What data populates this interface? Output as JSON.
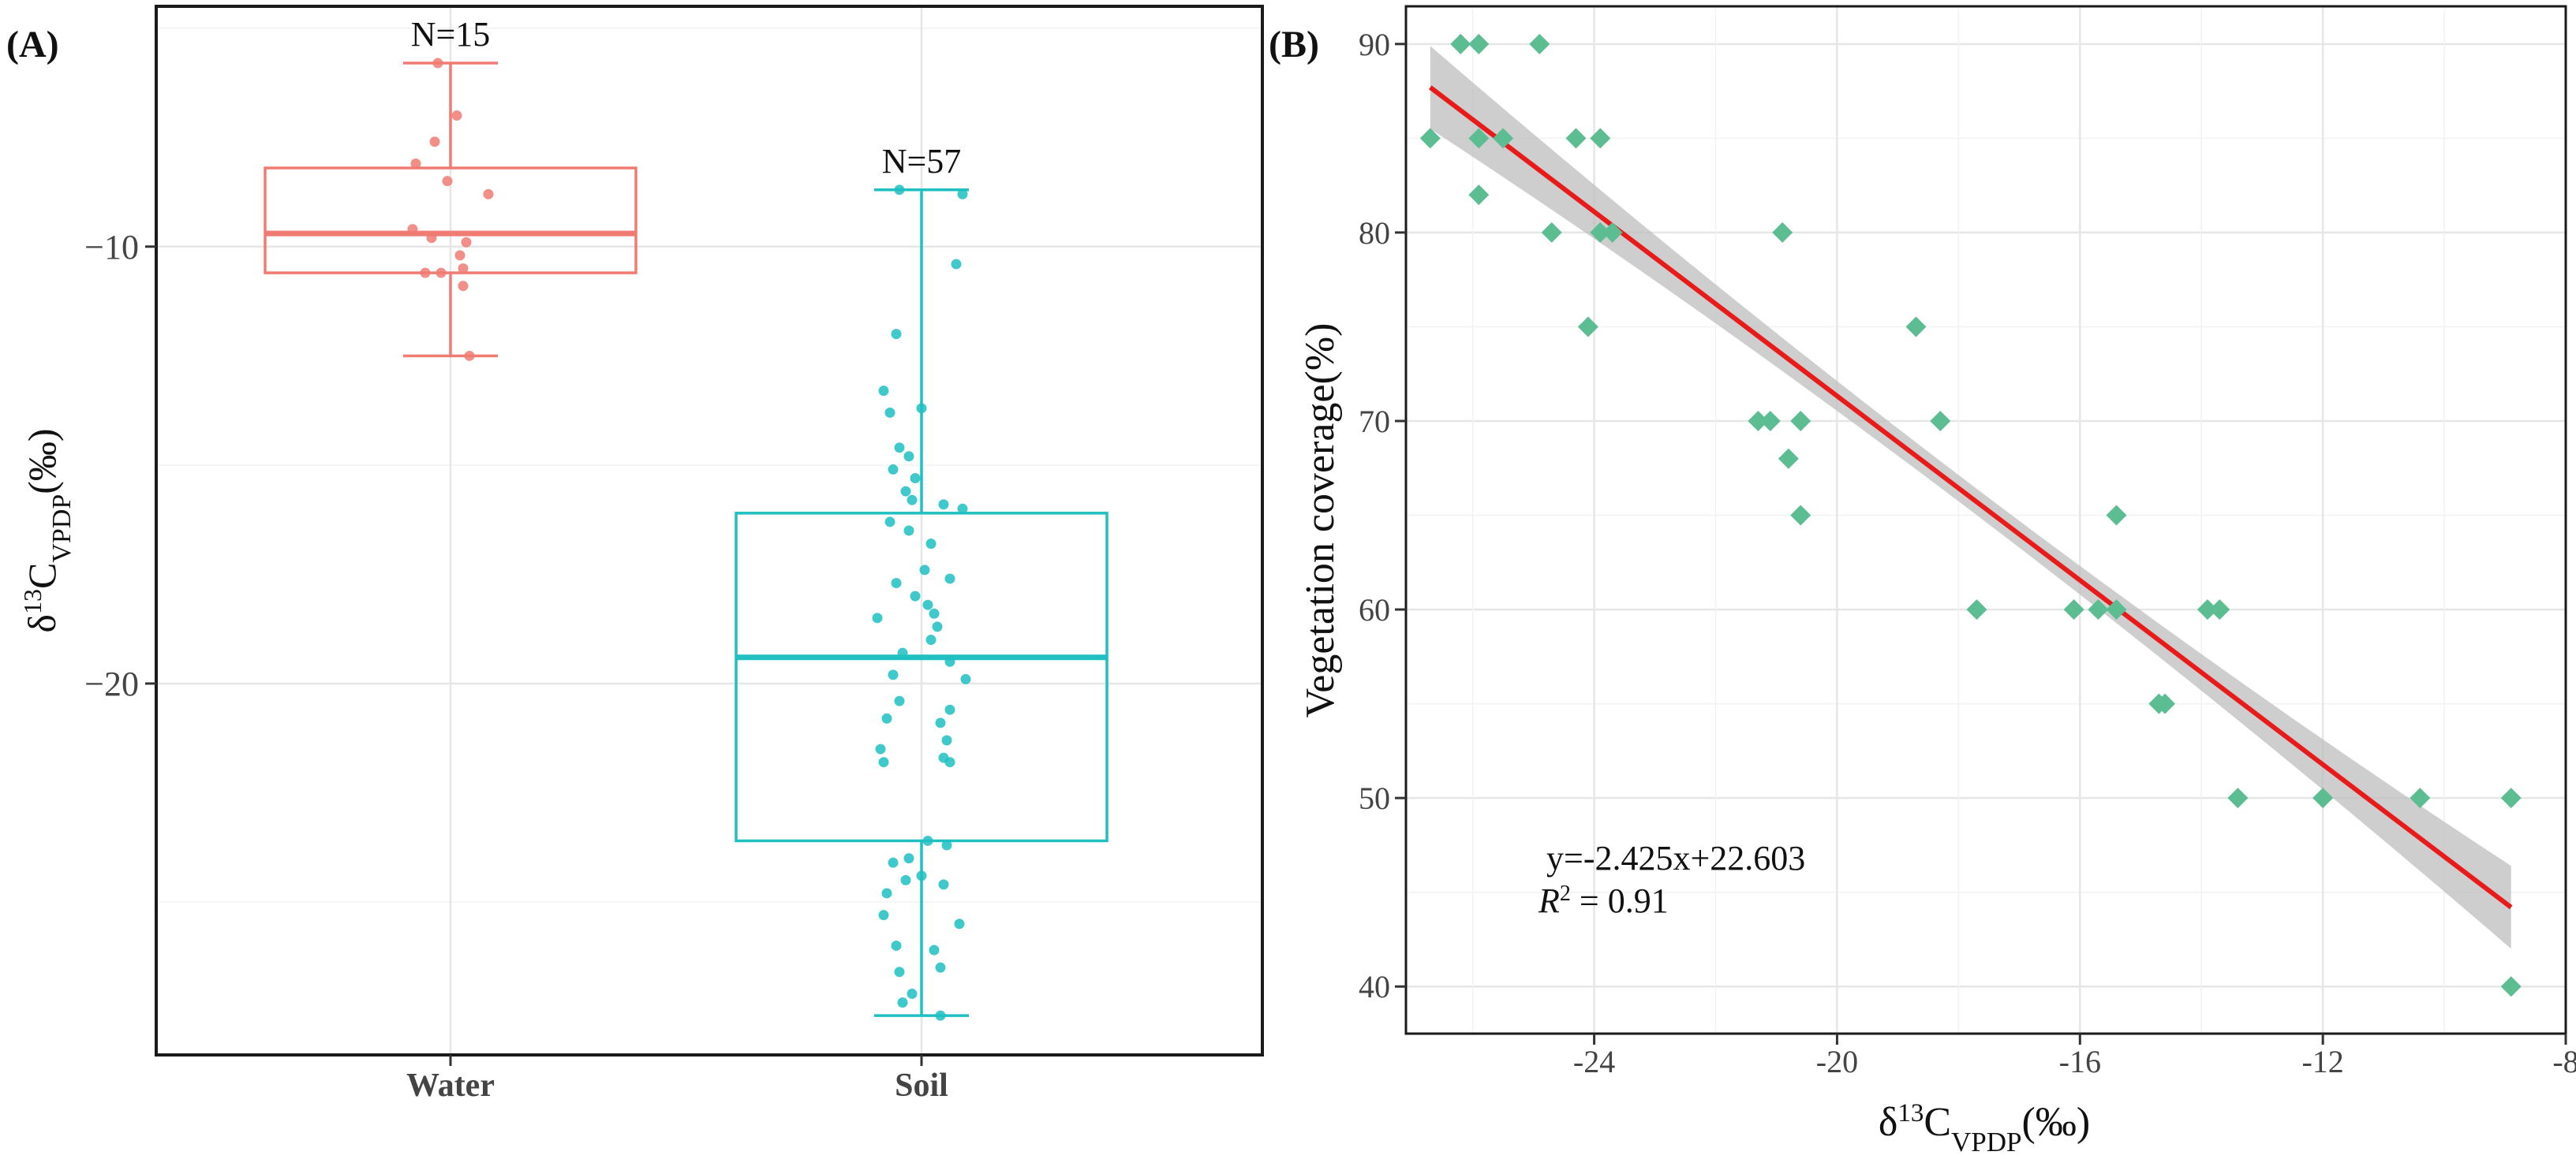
{
  "chart_data": [
    {
      "panel_label": "(A)",
      "type": "boxplot",
      "ylabel_main": "δ",
      "ylabel_sup": "13",
      "ylabel_c": "C",
      "ylabel_sub": "VPDP",
      "ylabel_tail": "(‰)",
      "ylim": [
        -28.5,
        -4.5
      ],
      "yticks": [
        -10,
        -20
      ],
      "ytick_labels": [
        "−10",
        "−20"
      ],
      "grid": true,
      "categories": [
        "Water",
        "Soil"
      ],
      "groups": [
        {
          "name": "Water",
          "color": "#f07b73",
          "n_label": "N=15",
          "whisker_high": -5.8,
          "q3": -8.2,
          "median": -9.7,
          "q1": -10.6,
          "whisker_low": -12.5,
          "points": [
            {
              "x": -0.04,
              "y": -5.8
            },
            {
              "x": 0.02,
              "y": -7.0
            },
            {
              "x": -0.05,
              "y": -7.6
            },
            {
              "x": -0.11,
              "y": -8.1
            },
            {
              "x": -0.01,
              "y": -8.5
            },
            {
              "x": 0.12,
              "y": -8.8
            },
            {
              "x": -0.12,
              "y": -9.6
            },
            {
              "x": -0.06,
              "y": -9.8
            },
            {
              "x": 0.05,
              "y": -9.9
            },
            {
              "x": 0.03,
              "y": -10.2
            },
            {
              "x": 0.04,
              "y": -10.5
            },
            {
              "x": -0.08,
              "y": -10.6
            },
            {
              "x": -0.03,
              "y": -10.6
            },
            {
              "x": 0.04,
              "y": -10.9
            },
            {
              "x": 0.06,
              "y": -12.5
            }
          ]
        },
        {
          "name": "Soil",
          "color": "#1fbfc2",
          "n_label": "N=57",
          "whisker_high": -8.7,
          "q3": -16.1,
          "median": -19.4,
          "q1": -23.6,
          "whisker_low": -27.6,
          "points": [
            {
              "x": -0.07,
              "y": -8.7
            },
            {
              "x": 0.13,
              "y": -8.8
            },
            {
              "x": 0.11,
              "y": -10.4
            },
            {
              "x": -0.08,
              "y": -12.0
            },
            {
              "x": -0.12,
              "y": -13.3
            },
            {
              "x": -0.1,
              "y": -13.8
            },
            {
              "x": -0.0,
              "y": -13.7
            },
            {
              "x": -0.07,
              "y": -14.6
            },
            {
              "x": -0.04,
              "y": -14.8
            },
            {
              "x": -0.09,
              "y": -15.1
            },
            {
              "x": -0.02,
              "y": -15.3
            },
            {
              "x": -0.05,
              "y": -15.6
            },
            {
              "x": -0.03,
              "y": -15.8
            },
            {
              "x": 0.07,
              "y": -15.9
            },
            {
              "x": 0.13,
              "y": -16.0
            },
            {
              "x": -0.1,
              "y": -16.3
            },
            {
              "x": -0.04,
              "y": -16.5
            },
            {
              "x": 0.03,
              "y": -16.8
            },
            {
              "x": 0.01,
              "y": -17.4
            },
            {
              "x": 0.09,
              "y": -17.6
            },
            {
              "x": -0.08,
              "y": -17.7
            },
            {
              "x": -0.02,
              "y": -18.0
            },
            {
              "x": 0.02,
              "y": -18.2
            },
            {
              "x": 0.04,
              "y": -18.4
            },
            {
              "x": -0.14,
              "y": -18.5
            },
            {
              "x": 0.05,
              "y": -18.7
            },
            {
              "x": 0.03,
              "y": -19.0
            },
            {
              "x": -0.06,
              "y": -19.3
            },
            {
              "x": 0.09,
              "y": -19.5
            },
            {
              "x": -0.09,
              "y": -19.8
            },
            {
              "x": 0.14,
              "y": -19.9
            },
            {
              "x": -0.07,
              "y": -20.4
            },
            {
              "x": 0.09,
              "y": -20.6
            },
            {
              "x": -0.11,
              "y": -20.8
            },
            {
              "x": 0.06,
              "y": -20.9
            },
            {
              "x": 0.08,
              "y": -21.3
            },
            {
              "x": -0.13,
              "y": -21.5
            },
            {
              "x": 0.07,
              "y": -21.7
            },
            {
              "x": -0.12,
              "y": -21.8
            },
            {
              "x": 0.09,
              "y": -21.8
            },
            {
              "x": 0.02,
              "y": -23.6
            },
            {
              "x": 0.08,
              "y": -23.7
            },
            {
              "x": -0.04,
              "y": -24.0
            },
            {
              "x": -0.09,
              "y": -24.1
            },
            {
              "x": 0.0,
              "y": -24.4
            },
            {
              "x": -0.05,
              "y": -24.5
            },
            {
              "x": 0.07,
              "y": -24.6
            },
            {
              "x": -0.11,
              "y": -24.8
            },
            {
              "x": -0.12,
              "y": -25.3
            },
            {
              "x": 0.12,
              "y": -25.5
            },
            {
              "x": -0.08,
              "y": -26.0
            },
            {
              "x": 0.04,
              "y": -26.1
            },
            {
              "x": 0.06,
              "y": -26.5
            },
            {
              "x": -0.07,
              "y": -26.6
            },
            {
              "x": -0.03,
              "y": -27.1
            },
            {
              "x": -0.06,
              "y": -27.3
            },
            {
              "x": 0.06,
              "y": -27.6
            }
          ]
        }
      ]
    },
    {
      "panel_label": "(B)",
      "type": "scatter",
      "xlabel_main": "δ",
      "xlabel_sup": "13",
      "xlabel_c": "C",
      "xlabel_sub": "VPDP",
      "xlabel_tail": "(‰)",
      "ylabel": "Vegetation coverage(%)",
      "xlim": [
        -27.1,
        -8.0
      ],
      "ylim": [
        37.5,
        92.0
      ],
      "xticks": [
        -24,
        -20,
        -16,
        -12,
        -8
      ],
      "xtick_labels": [
        "-24",
        "-20",
        "-16",
        "-12",
        "-8"
      ],
      "yticks": [
        40,
        50,
        60,
        70,
        80,
        90
      ],
      "ytick_labels": [
        "40",
        "50",
        "60",
        "70",
        "80",
        "90"
      ],
      "grid": true,
      "point_color": "#5dbd92",
      "fit_color": "#e81a1a",
      "band_color": "#bdbdbd",
      "fit": {
        "x0": -26.7,
        "y0": 87.7,
        "x1": -8.9,
        "y1": 44.2
      },
      "band_halfwidth": {
        "ends": 2.2,
        "middle": 0.7,
        "center_x": -17.8
      },
      "equation_label": "y=-2.425x+22.603",
      "r2_prefix": "R",
      "r2_sup": "2",
      "r2_suffix": " = 0.91",
      "points": [
        {
          "x": -26.7,
          "y": 85
        },
        {
          "x": -26.2,
          "y": 90
        },
        {
          "x": -25.9,
          "y": 90
        },
        {
          "x": -25.9,
          "y": 85
        },
        {
          "x": -25.5,
          "y": 85
        },
        {
          "x": -25.9,
          "y": 82
        },
        {
          "x": -24.9,
          "y": 90
        },
        {
          "x": -24.3,
          "y": 85
        },
        {
          "x": -23.9,
          "y": 85
        },
        {
          "x": -24.7,
          "y": 80
        },
        {
          "x": -23.9,
          "y": 80
        },
        {
          "x": -23.7,
          "y": 80
        },
        {
          "x": -24.1,
          "y": 75
        },
        {
          "x": -20.9,
          "y": 80
        },
        {
          "x": -21.3,
          "y": 70
        },
        {
          "x": -21.1,
          "y": 70
        },
        {
          "x": -20.6,
          "y": 70
        },
        {
          "x": -20.8,
          "y": 68
        },
        {
          "x": -20.6,
          "y": 65
        },
        {
          "x": -18.7,
          "y": 75
        },
        {
          "x": -18.3,
          "y": 70
        },
        {
          "x": -17.7,
          "y": 60
        },
        {
          "x": -16.1,
          "y": 60
        },
        {
          "x": -15.7,
          "y": 60
        },
        {
          "x": -15.4,
          "y": 60
        },
        {
          "x": -15.4,
          "y": 65
        },
        {
          "x": -14.7,
          "y": 55
        },
        {
          "x": -14.6,
          "y": 55
        },
        {
          "x": -13.9,
          "y": 60
        },
        {
          "x": -13.7,
          "y": 60
        },
        {
          "x": -13.4,
          "y": 50
        },
        {
          "x": -12.0,
          "y": 50
        },
        {
          "x": -10.4,
          "y": 50
        },
        {
          "x": -8.9,
          "y": 50
        },
        {
          "x": -8.9,
          "y": 40
        }
      ]
    }
  ]
}
